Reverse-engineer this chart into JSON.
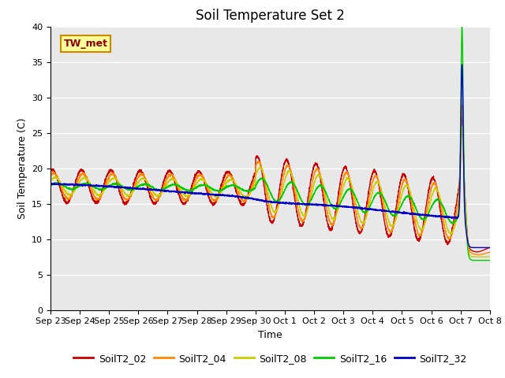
{
  "title": "Soil Temperature Set 2",
  "xlabel": "Time",
  "ylabel": "Soil Temperature (C)",
  "ylim": [
    0,
    40
  ],
  "annotation": "TW_met",
  "bg_color": "#e8e8e8",
  "fig_color": "#ffffff",
  "legend": [
    "SoilT2_02",
    "SoilT2_04",
    "SoilT2_08",
    "SoilT2_16",
    "SoilT2_32"
  ],
  "colors": [
    "#cc0000",
    "#ff8800",
    "#cccc00",
    "#00cc00",
    "#0000cc"
  ],
  "x_tick_labels": [
    "Sep 23",
    "Sep 24",
    "Sep 25",
    "Sep 26",
    "Sep 27",
    "Sep 28",
    "Sep 29",
    "Sep 30",
    "Oct 1",
    "Oct 2",
    "Oct 3",
    "Oct 4",
    "Oct 5",
    "Oct 6",
    "Oct 7",
    "Oct 8"
  ],
  "title_fontsize": 12,
  "label_fontsize": 9,
  "tick_fontsize": 8
}
